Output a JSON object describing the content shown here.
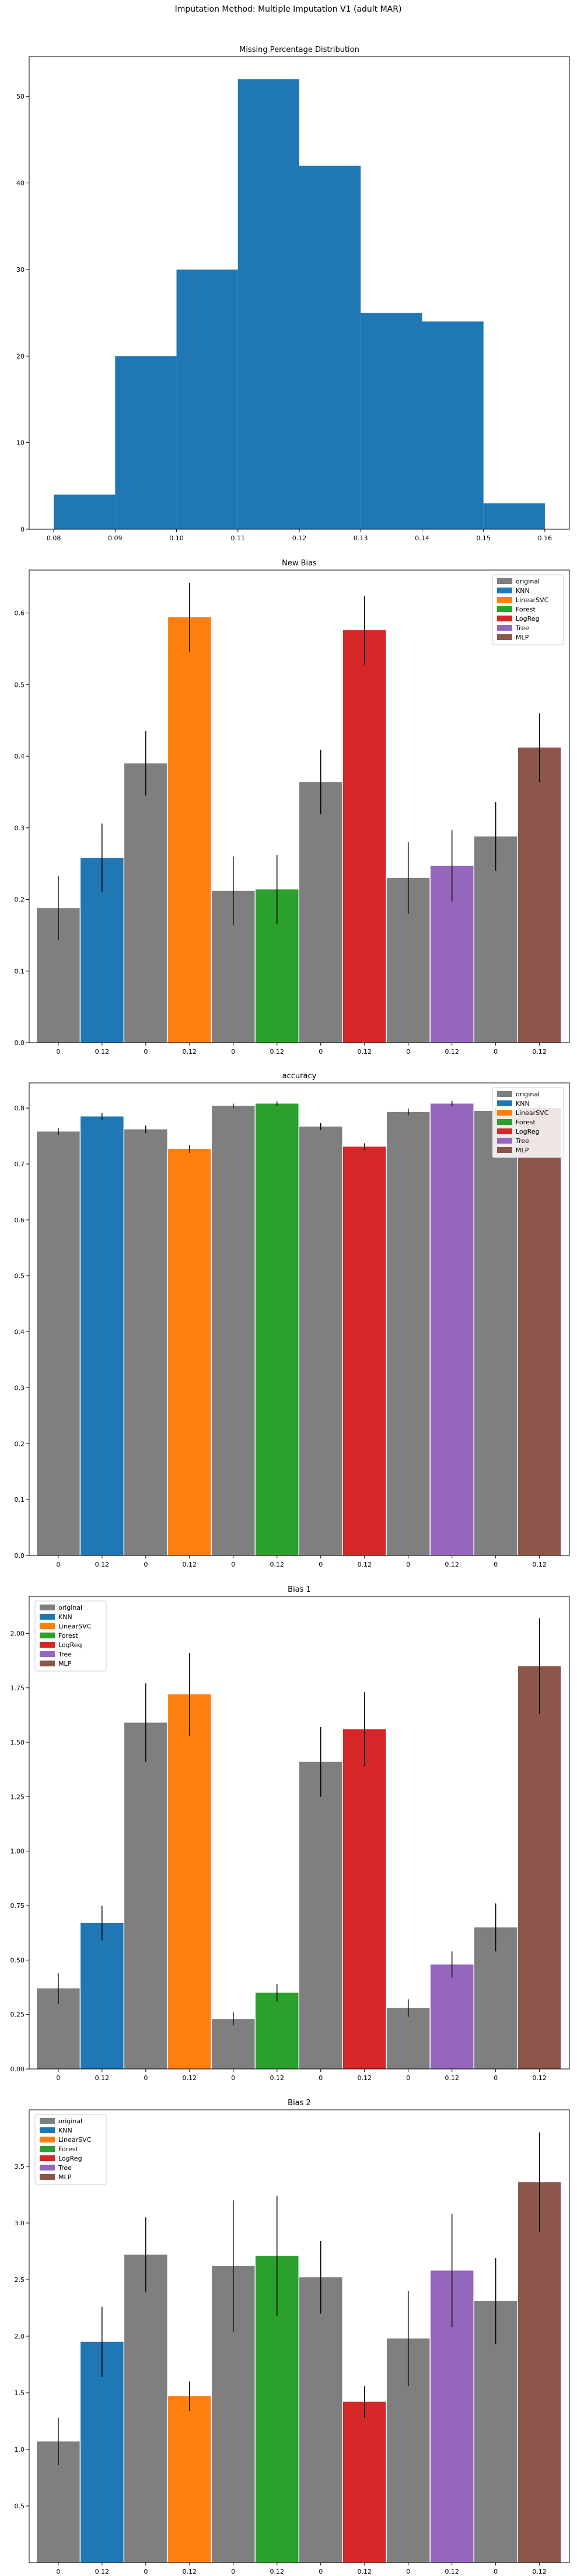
{
  "figure_title": "Imputation Method: Multiple Imputation V1 (adult MAR)",
  "colors": {
    "original": "#7f7f7f",
    "KNN": "#1f77b4",
    "LinearSVC": "#ff7f0e",
    "Forest": "#2ca02c",
    "LogReg": "#d62728",
    "Tree": "#9467bd",
    "MLP": "#8c564b",
    "hist": "#1f77b4"
  },
  "chart_data": [
    {
      "type": "histogram",
      "title": "Missing Percentage Distribution",
      "bin_edges": [
        0.08,
        0.09,
        0.1,
        0.11,
        0.12,
        0.13,
        0.14,
        0.15,
        0.16
      ],
      "counts": [
        4,
        20,
        30,
        52,
        42,
        25,
        24,
        3
      ],
      "xlim": [
        0.076,
        0.164
      ],
      "ylim": [
        0,
        54.6
      ],
      "xticks": [
        "0.08",
        "0.09",
        "0.10",
        "0.11",
        "0.12",
        "0.13",
        "0.14",
        "0.15",
        "0.16"
      ],
      "yticks": [
        "0",
        "10",
        "20",
        "30",
        "40",
        "50"
      ]
    },
    {
      "type": "bar",
      "title": "New Bias",
      "groups": [
        "KNN",
        "LinearSVC",
        "Forest",
        "LogReg",
        "Tree",
        "MLP"
      ],
      "tick_labels": [
        "0",
        "0.12"
      ],
      "original": [
        0.188,
        0.39,
        0.212,
        0.364,
        0.23,
        0.288
      ],
      "original_err": [
        0.045,
        0.045,
        0.048,
        0.045,
        0.05,
        0.048
      ],
      "imputed": [
        0.258,
        0.594,
        0.214,
        0.576,
        0.247,
        0.412
      ],
      "imputed_err": [
        0.048,
        0.048,
        0.048,
        0.048,
        0.05,
        0.048
      ],
      "ylim": [
        0,
        0.66
      ],
      "yticks": [
        "0.0",
        "0.1",
        "0.2",
        "0.3",
        "0.4",
        "0.5",
        "0.6"
      ],
      "legend": [
        "original",
        "KNN",
        "LinearSVC",
        "Forest",
        "LogReg",
        "Tree",
        "MLP"
      ],
      "legend_position": "upper right"
    },
    {
      "type": "bar",
      "title": "accuracy",
      "groups": [
        "KNN",
        "LinearSVC",
        "Forest",
        "LogReg",
        "Tree",
        "MLP"
      ],
      "tick_labels": [
        "0",
        "0.12"
      ],
      "original": [
        0.758,
        0.762,
        0.804,
        0.767,
        0.793,
        0.795
      ],
      "original_err": [
        0.006,
        0.007,
        0.004,
        0.006,
        0.006,
        0.006
      ],
      "imputed": [
        0.785,
        0.727,
        0.808,
        0.731,
        0.808,
        0.8
      ],
      "imputed_err": [
        0.006,
        0.007,
        0.004,
        0.006,
        0.005,
        0.006
      ],
      "ylim": [
        0,
        0.845
      ],
      "yticks": [
        "0.0",
        "0.1",
        "0.2",
        "0.3",
        "0.4",
        "0.5",
        "0.6",
        "0.7",
        "0.8"
      ],
      "legend": [
        "original",
        "KNN",
        "LinearSVC",
        "Forest",
        "LogReg",
        "Tree",
        "MLP"
      ],
      "legend_position": "upper right"
    },
    {
      "type": "bar",
      "title": "Bias 1",
      "groups": [
        "KNN",
        "LinearSVC",
        "Forest",
        "LogReg",
        "Tree",
        "MLP"
      ],
      "tick_labels": [
        "0",
        "0.12"
      ],
      "original": [
        0.37,
        1.59,
        0.23,
        1.41,
        0.28,
        0.65
      ],
      "original_err": [
        0.07,
        0.18,
        0.03,
        0.16,
        0.04,
        0.11
      ],
      "imputed": [
        0.67,
        1.72,
        0.35,
        1.56,
        0.48,
        1.85
      ],
      "imputed_err": [
        0.08,
        0.19,
        0.04,
        0.17,
        0.06,
        0.22
      ],
      "ylim": [
        0,
        2.17
      ],
      "yticks": [
        "0.00",
        "0.25",
        "0.50",
        "0.75",
        "1.00",
        "1.25",
        "1.50",
        "1.75",
        "2.00"
      ],
      "legend": [
        "original",
        "KNN",
        "LinearSVC",
        "Forest",
        "LogReg",
        "Tree",
        "MLP"
      ],
      "legend_position": "upper left"
    },
    {
      "type": "bar",
      "title": "Bias 2",
      "groups": [
        "KNN",
        "LinearSVC",
        "Forest",
        "LogReg",
        "Tree",
        "MLP"
      ],
      "tick_labels": [
        "0",
        "0.12"
      ],
      "original": [
        1.07,
        2.72,
        2.62,
        2.52,
        1.98,
        2.31
      ],
      "original_err": [
        0.21,
        0.33,
        0.58,
        0.32,
        0.42,
        0.38
      ],
      "imputed": [
        1.95,
        1.47,
        2.71,
        1.42,
        2.58,
        3.36
      ],
      "imputed_err": [
        0.31,
        0.13,
        0.53,
        0.14,
        0.5,
        0.44
      ],
      "ylim": [
        0,
        4.0
      ],
      "yticks": [
        "0.5",
        "1.0",
        "1.5",
        "2.0",
        "2.5",
        "3.0",
        "3.5"
      ],
      "legend": [
        "original",
        "KNN",
        "LinearSVC",
        "Forest",
        "LogReg",
        "Tree",
        "MLP"
      ],
      "legend_position": "upper left"
    }
  ]
}
